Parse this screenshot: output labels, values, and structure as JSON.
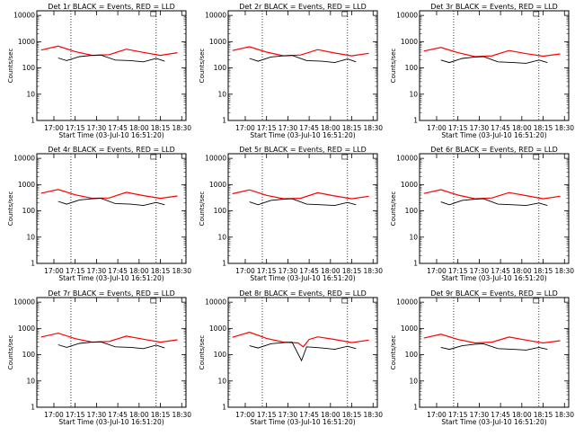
{
  "chart_data": [
    {
      "type": "line",
      "title": "Det 1r BLACK = Events, RED = LLD",
      "xlabel": "Start Time (03-Jul-10 16:51:20)",
      "ylabel": "Counts/sec",
      "yscale": "log",
      "ylim": [
        1,
        15000
      ],
      "xlim": [
        16.8,
        18.55
      ],
      "x_ticks": [
        "17:00",
        "17:15",
        "17:30",
        "17:45",
        "18:00",
        "18:15",
        "18:30"
      ],
      "y_ticks": [
        "1",
        "10",
        "100",
        "1000",
        "10000"
      ],
      "vlines": [
        17.2,
        18.2
      ],
      "series": [
        {
          "name": "LLD",
          "color": "#ff0000",
          "x": [
            16.85,
            17.05,
            17.25,
            17.45,
            17.65,
            17.85,
            18.05,
            18.25,
            18.45
          ],
          "values": [
            480,
            680,
            420,
            300,
            320,
            520,
            390,
            300,
            380
          ]
        },
        {
          "name": "Events",
          "color": "#000000",
          "x": [
            17.05,
            17.15,
            17.3,
            17.45,
            17.55,
            17.72,
            17.9,
            18.05,
            18.2,
            18.3
          ],
          "values": [
            240,
            190,
            270,
            300,
            310,
            200,
            190,
            170,
            230,
            180
          ]
        }
      ]
    },
    {
      "type": "line",
      "title": "Det 2r BLACK = Events, RED = LLD",
      "xlabel": "Start Time (03-Jul-10 16:51:20)",
      "ylabel": "Counts/sec",
      "yscale": "log",
      "ylim": [
        1,
        15000
      ],
      "xlim": [
        16.8,
        18.55
      ],
      "x_ticks": [
        "17:00",
        "17:15",
        "17:30",
        "17:45",
        "18:00",
        "18:15",
        "18:30"
      ],
      "y_ticks": [
        "1",
        "10",
        "100",
        "1000",
        "10000"
      ],
      "vlines": [
        17.2,
        18.2
      ],
      "series": [
        {
          "name": "LLD",
          "color": "#ff0000",
          "x": [
            16.85,
            17.05,
            17.25,
            17.45,
            17.65,
            17.85,
            18.05,
            18.25,
            18.45
          ],
          "values": [
            460,
            640,
            400,
            290,
            310,
            500,
            370,
            290,
            360
          ]
        },
        {
          "name": "Events",
          "color": "#000000",
          "x": [
            17.05,
            17.15,
            17.3,
            17.45,
            17.55,
            17.72,
            17.9,
            18.05,
            18.2,
            18.3
          ],
          "values": [
            230,
            180,
            260,
            290,
            300,
            190,
            180,
            160,
            220,
            170
          ]
        }
      ]
    },
    {
      "type": "line",
      "title": "Det 3r BLACK = Events, RED = LLD",
      "xlabel": "Start Time (03-Jul-10 16:51:20)",
      "ylabel": "Counts/sec",
      "yscale": "log",
      "ylim": [
        1,
        15000
      ],
      "xlim": [
        16.8,
        18.55
      ],
      "x_ticks": [
        "17:00",
        "17:15",
        "17:30",
        "17:45",
        "18:00",
        "18:15",
        "18:30"
      ],
      "y_ticks": [
        "1",
        "10",
        "100",
        "1000",
        "10000"
      ],
      "vlines": [
        17.2,
        18.2
      ],
      "series": [
        {
          "name": "LLD",
          "color": "#ff0000",
          "x": [
            16.85,
            17.05,
            17.25,
            17.45,
            17.65,
            17.85,
            18.05,
            18.25,
            18.45
          ],
          "values": [
            440,
            600,
            380,
            270,
            290,
            460,
            350,
            280,
            340
          ]
        },
        {
          "name": "Events",
          "color": "#000000",
          "x": [
            17.05,
            17.15,
            17.3,
            17.45,
            17.55,
            17.72,
            17.9,
            18.05,
            18.2,
            18.3
          ],
          "values": [
            200,
            160,
            230,
            260,
            270,
            170,
            160,
            150,
            200,
            160
          ]
        }
      ]
    },
    {
      "type": "line",
      "title": "Det 4r BLACK = Events, RED = LLD",
      "xlabel": "Start Time (03-Jul-10 16:51:20)",
      "ylabel": "Counts/sec",
      "yscale": "log",
      "ylim": [
        1,
        15000
      ],
      "xlim": [
        16.8,
        18.55
      ],
      "x_ticks": [
        "17:00",
        "17:15",
        "17:30",
        "17:45",
        "18:00",
        "18:15",
        "18:30"
      ],
      "y_ticks": [
        "1",
        "10",
        "100",
        "1000",
        "10000"
      ],
      "vlines": [
        17.2,
        18.2
      ],
      "series": [
        {
          "name": "LLD",
          "color": "#ff0000",
          "x": [
            16.85,
            17.05,
            17.25,
            17.45,
            17.65,
            17.85,
            18.05,
            18.25,
            18.45
          ],
          "values": [
            470,
            650,
            410,
            300,
            310,
            510,
            380,
            300,
            370
          ]
        },
        {
          "name": "Events",
          "color": "#000000",
          "x": [
            17.05,
            17.15,
            17.3,
            17.45,
            17.55,
            17.72,
            17.9,
            18.05,
            18.2,
            18.3
          ],
          "values": [
            230,
            180,
            260,
            290,
            300,
            190,
            180,
            160,
            210,
            170
          ]
        }
      ]
    },
    {
      "type": "line",
      "title": "Det 5r BLACK = Events, RED = LLD",
      "xlabel": "Start Time (03-Jul-10 16:51:20)",
      "ylabel": "Counts/sec",
      "yscale": "log",
      "ylim": [
        1,
        15000
      ],
      "xlim": [
        16.8,
        18.55
      ],
      "x_ticks": [
        "17:00",
        "17:15",
        "17:30",
        "17:45",
        "18:00",
        "18:15",
        "18:30"
      ],
      "y_ticks": [
        "1",
        "10",
        "100",
        "1000",
        "10000"
      ],
      "vlines": [
        17.2,
        18.2
      ],
      "series": [
        {
          "name": "LLD",
          "color": "#ff0000",
          "x": [
            16.85,
            17.05,
            17.25,
            17.45,
            17.65,
            17.85,
            18.05,
            18.25,
            18.45
          ],
          "values": [
            450,
            630,
            390,
            290,
            300,
            490,
            370,
            290,
            360
          ]
        },
        {
          "name": "Events",
          "color": "#000000",
          "x": [
            17.05,
            17.15,
            17.3,
            17.45,
            17.55,
            17.72,
            17.9,
            18.05,
            18.2,
            18.3
          ],
          "values": [
            220,
            170,
            250,
            280,
            290,
            180,
            170,
            160,
            210,
            170
          ]
        }
      ]
    },
    {
      "type": "line",
      "title": "Det 6r BLACK = Events, RED = LLD",
      "xlabel": "Start Time (03-Jul-10 16:51:20)",
      "ylabel": "Counts/sec",
      "yscale": "log",
      "ylim": [
        1,
        15000
      ],
      "xlim": [
        16.8,
        18.55
      ],
      "x_ticks": [
        "17:00",
        "17:15",
        "17:30",
        "17:45",
        "18:00",
        "18:15",
        "18:30"
      ],
      "y_ticks": [
        "1",
        "10",
        "100",
        "1000",
        "10000"
      ],
      "vlines": [
        17.2,
        18.2
      ],
      "series": [
        {
          "name": "LLD",
          "color": "#ff0000",
          "x": [
            16.85,
            17.05,
            17.25,
            17.45,
            17.65,
            17.85,
            18.05,
            18.25,
            18.45
          ],
          "values": [
            460,
            640,
            400,
            290,
            310,
            500,
            380,
            290,
            360
          ]
        },
        {
          "name": "Events",
          "color": "#000000",
          "x": [
            17.05,
            17.15,
            17.3,
            17.45,
            17.55,
            17.72,
            17.9,
            18.05,
            18.2,
            18.3
          ],
          "values": [
            220,
            170,
            250,
            280,
            290,
            180,
            170,
            160,
            200,
            160
          ]
        }
      ]
    },
    {
      "type": "line",
      "title": "Det 7r BLACK = Events, RED = LLD",
      "xlabel": "Start Time (03-Jul-10 16:51:20)",
      "ylabel": "Counts/sec",
      "yscale": "log",
      "ylim": [
        1,
        15000
      ],
      "xlim": [
        16.8,
        18.55
      ],
      "x_ticks": [
        "17:00",
        "17:15",
        "17:30",
        "17:45",
        "18:00",
        "18:15",
        "18:30"
      ],
      "y_ticks": [
        "1",
        "10",
        "100",
        "1000",
        "10000"
      ],
      "vlines": [
        17.2,
        18.2
      ],
      "series": [
        {
          "name": "LLD",
          "color": "#ff0000",
          "x": [
            16.85,
            17.05,
            17.25,
            17.45,
            17.65,
            17.85,
            18.05,
            18.25,
            18.45
          ],
          "values": [
            470,
            660,
            410,
            300,
            320,
            510,
            390,
            300,
            370
          ]
        },
        {
          "name": "Events",
          "color": "#000000",
          "x": [
            17.05,
            17.15,
            17.3,
            17.45,
            17.55,
            17.72,
            17.9,
            18.05,
            18.2,
            18.3
          ],
          "values": [
            240,
            190,
            270,
            300,
            310,
            200,
            190,
            170,
            230,
            180
          ]
        }
      ]
    },
    {
      "type": "line",
      "title": "Det 8r BLACK = Events, RED = LLD",
      "xlabel": "Start Time (03-Jul-10 16:51:20)",
      "ylabel": "Counts/sec",
      "yscale": "log",
      "ylim": [
        1,
        15000
      ],
      "xlim": [
        16.8,
        18.55
      ],
      "x_ticks": [
        "17:00",
        "17:15",
        "17:30",
        "17:45",
        "18:00",
        "18:15",
        "18:30"
      ],
      "y_ticks": [
        "1",
        "10",
        "100",
        "1000",
        "10000"
      ],
      "vlines": [
        17.2,
        18.2
      ],
      "series": [
        {
          "name": "LLD",
          "color": "#ff0000",
          "x": [
            16.85,
            17.05,
            17.25,
            17.45,
            17.62,
            17.68,
            17.75,
            17.85,
            18.05,
            18.25,
            18.45
          ],
          "values": [
            460,
            720,
            420,
            300,
            280,
            200,
            380,
            480,
            380,
            290,
            360
          ]
        },
        {
          "name": "Events",
          "color": "#000000",
          "x": [
            17.05,
            17.15,
            17.3,
            17.45,
            17.55,
            17.66,
            17.72,
            17.9,
            18.05,
            18.2,
            18.3
          ],
          "values": [
            220,
            180,
            260,
            290,
            300,
            60,
            200,
            180,
            160,
            210,
            170
          ]
        }
      ]
    },
    {
      "type": "line",
      "title": "Det 9r BLACK = Events, RED = LLD",
      "xlabel": "Start Time (03-Jul-10 16:51:20)",
      "ylabel": "Counts/sec",
      "yscale": "log",
      "ylim": [
        1,
        15000
      ],
      "xlim": [
        16.8,
        18.55
      ],
      "x_ticks": [
        "17:00",
        "17:15",
        "17:30",
        "17:45",
        "18:00",
        "18:15",
        "18:30"
      ],
      "y_ticks": [
        "1",
        "10",
        "100",
        "1000",
        "10000"
      ],
      "vlines": [
        17.2,
        18.2
      ],
      "series": [
        {
          "name": "LLD",
          "color": "#ff0000",
          "x": [
            16.85,
            17.05,
            17.25,
            17.45,
            17.65,
            17.85,
            18.05,
            18.25,
            18.45
          ],
          "values": [
            430,
            600,
            380,
            280,
            300,
            470,
            360,
            280,
            340
          ]
        },
        {
          "name": "Events",
          "color": "#000000",
          "x": [
            17.05,
            17.15,
            17.3,
            17.45,
            17.55,
            17.72,
            17.9,
            18.05,
            18.2,
            18.3
          ],
          "values": [
            190,
            160,
            220,
            250,
            260,
            170,
            160,
            150,
            190,
            160
          ]
        }
      ]
    }
  ]
}
